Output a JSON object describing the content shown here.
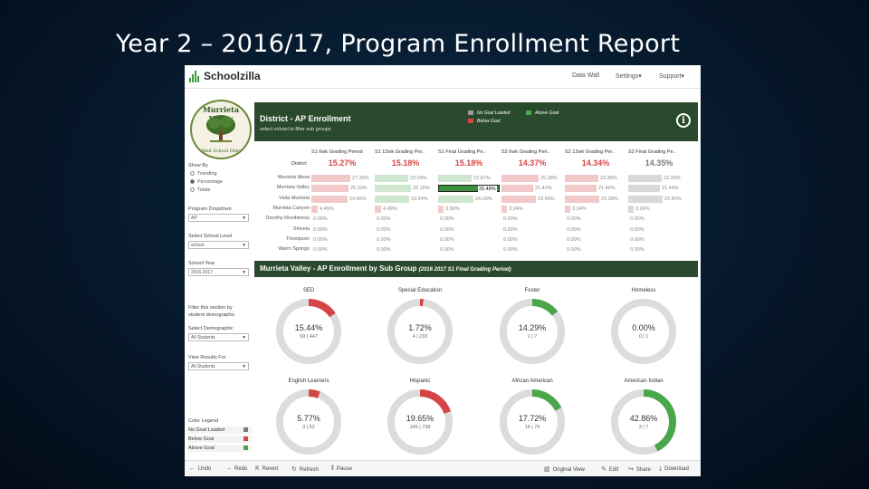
{
  "slide": {
    "title": "Year 2 – 2016/17, Program Enrollment Report"
  },
  "app": {
    "logo": "Schoolzilla",
    "nav": [
      "Data Wall",
      "Settings▾",
      "Support▾"
    ]
  },
  "crest": {
    "title": "Murrieta Valley",
    "subtitle": "Unified School District"
  },
  "filters": {
    "show_by_label": "Show By",
    "show_by_options": [
      "Trending",
      "Percentage",
      "Totals"
    ],
    "show_by_selected": 1,
    "program_label": "Program Dropdown",
    "program_value": "AP",
    "school_level_label": "Select School Level",
    "school_level_value": "school",
    "school_year_label": "School Year",
    "school_year_value": "2016-2017",
    "filter_note_1": "Filter this section by",
    "filter_note_2": "student demographic",
    "demographic_label": "Select Demographic",
    "demographic_value": "All Students",
    "view_results_label": "View Results For",
    "view_results_value": "All Students"
  },
  "color_legend": {
    "title": "Color Legend",
    "items": [
      {
        "label": "No Goal Loaded",
        "color": "#7a7a7a"
      },
      {
        "label": "Below Goal",
        "color": "#d64545"
      },
      {
        "label": "Above Goal",
        "color": "#4aa64a"
      }
    ]
  },
  "header": {
    "title": "District - AP Enrollment",
    "subtitle": "select school to filter sub groups",
    "legend": [
      {
        "label": "No Goal Loaded",
        "color": "#9a9a9a"
      },
      {
        "label": "Above Goal",
        "color": "#4aa64a"
      },
      {
        "label": "Below Goal",
        "color": "#d64545"
      }
    ]
  },
  "table": {
    "columns": [
      "S1 6wk Grading Period",
      "S1 12wk Grading Per..",
      "S1 Final Grading Pe..",
      "S2 6wk Grading Peri..",
      "S2 12wk Grading Per..",
      "S2 Final Grading Pe.."
    ],
    "district_label": "District",
    "district_values": [
      "15.27%",
      "15.18%",
      "15.18%",
      "14.37%",
      "14.34%",
      "14.35%"
    ],
    "district_colors": [
      "#d64545",
      "#d64545",
      "#d64545",
      "#d64545",
      "#d64545",
      "#7a7a7a"
    ],
    "rows": [
      {
        "name": "Murrieta Mesa",
        "values": [
          "27.35%",
          "23.04%",
          "22.87%",
          "25.28%",
          "23.38%",
          "23.30%"
        ],
        "fracs": [
          0.7,
          0.6,
          0.6,
          0.66,
          0.6,
          0.6
        ],
        "colors": [
          "#f2c9c9",
          "#cfe6cf",
          "#cfe6cf",
          "#f2c9c9",
          "#f2c9c9",
          "#d9d9d9"
        ]
      },
      {
        "name": "Murrieta Valley",
        "values": [
          "25.33%",
          "25.16%",
          "25.48%",
          "21.42%",
          "21.45%",
          "21.44%"
        ],
        "fracs": [
          0.66,
          0.65,
          0.66,
          0.56,
          0.56,
          0.56
        ],
        "colors": [
          "#f2c9c9",
          "#cfe6cf",
          "#3a8f3a",
          "#f2c9c9",
          "#f2c9c9",
          "#d9d9d9"
        ]
      },
      {
        "name": "Vista Murrieta",
        "values": [
          "24.56%",
          "23.54%",
          "24.09%",
          "23.46%",
          "23.38%",
          "23.40%"
        ],
        "fracs": [
          0.64,
          0.61,
          0.63,
          0.61,
          0.61,
          0.61
        ],
        "colors": [
          "#f2c9c9",
          "#cfe6cf",
          "#cfe6cf",
          "#f2c9c9",
          "#f2c9c9",
          "#d9d9d9"
        ]
      },
      {
        "name": "Murrieta Canyon",
        "values": [
          "4.49%",
          "4.49%",
          "3.90%",
          "3.24%",
          "3.24%",
          "3.24%"
        ],
        "fracs": [
          0.12,
          0.12,
          0.1,
          0.09,
          0.09,
          0.09
        ],
        "colors": [
          "#f2c9c9",
          "#f2c9c9",
          "#f2c9c9",
          "#f2c9c9",
          "#f2c9c9",
          "#d9d9d9"
        ]
      },
      {
        "name": "Dorothy Mcelhinney",
        "values": [
          "0.00%",
          "0.00%",
          "0.00%",
          "0.00%",
          "0.00%",
          "0.00%"
        ],
        "fracs": [
          0,
          0,
          0,
          0,
          0,
          0
        ],
        "colors": [
          "#f2c9c9",
          "#f2c9c9",
          "#f2c9c9",
          "#f2c9c9",
          "#f2c9c9",
          "#d9d9d9"
        ]
      },
      {
        "name": "Shivela",
        "values": [
          "0.00%",
          "0.00%",
          "0.00%",
          "0.00%",
          "0.00%",
          "0.00%"
        ],
        "fracs": [
          0,
          0,
          0,
          0,
          0,
          0
        ],
        "colors": [
          "#f2c9c9",
          "#f2c9c9",
          "#f2c9c9",
          "#f2c9c9",
          "#f2c9c9",
          "#d9d9d9"
        ]
      },
      {
        "name": "Thompson",
        "values": [
          "0.00%",
          "0.00%",
          "0.00%",
          "0.00%",
          "0.00%",
          "0.00%"
        ],
        "fracs": [
          0,
          0,
          0,
          0,
          0,
          0
        ],
        "colors": [
          "#f2c9c9",
          "#f2c9c9",
          "#f2c9c9",
          "#f2c9c9",
          "#f2c9c9",
          "#d9d9d9"
        ]
      },
      {
        "name": "Warm Springs",
        "values": [
          "0.00%",
          "0.00%",
          "0.00%",
          "0.00%",
          "0.00%",
          "0.00%"
        ],
        "fracs": [
          0,
          0,
          0,
          0,
          0,
          0
        ],
        "colors": [
          "#f2c9c9",
          "#f2c9c9",
          "#f2c9c9",
          "#f2c9c9",
          "#f2c9c9",
          "#d9d9d9"
        ]
      }
    ]
  },
  "subgroup": {
    "title": "Murrieta Valley - AP Enrollment by Sub Group",
    "detail": "(2016 2017 S1 Final Grading Period)"
  },
  "chart_data": {
    "type": "pie",
    "title": "Murrieta Valley - AP Enrollment by Sub Group (2016 2017 S1 Final Grading Period)",
    "donuts": [
      {
        "name": "SED",
        "percent": 15.44,
        "label": "15.44%",
        "counts": "69 | 447",
        "color": "#d64545"
      },
      {
        "name": "Special Education",
        "percent": 1.72,
        "label": "1.72%",
        "counts": "4 | 233",
        "color": "#d64545"
      },
      {
        "name": "Foster",
        "percent": 14.29,
        "label": "14.29%",
        "counts": "1 | 7",
        "color": "#4aa64a"
      },
      {
        "name": "Homeless",
        "percent": 0,
        "label": "0.00%",
        "counts": "0 | 1",
        "color": "#d64545"
      },
      {
        "name": "English Learners",
        "percent": 5.77,
        "label": "5.77%",
        "counts": "3 | 52",
        "color": "#d64545"
      },
      {
        "name": "Hispanic",
        "percent": 19.65,
        "label": "19.65%",
        "counts": "145 | 738",
        "color": "#d64545"
      },
      {
        "name": "African American",
        "percent": 17.72,
        "label": "17.72%",
        "counts": "14 | 79",
        "color": "#4aa64a"
      },
      {
        "name": "American Indian",
        "percent": 42.86,
        "label": "42.86%",
        "counts": "3 | 7",
        "color": "#4aa64a"
      }
    ],
    "track_color": "#dcdcdc"
  },
  "toolbar": {
    "items": [
      {
        "icon": "←",
        "label": "Undo",
        "name": "undo"
      },
      {
        "icon": "→",
        "label": "Redo",
        "name": "redo"
      },
      {
        "icon": "K",
        "label": "Revert",
        "name": "revert"
      },
      {
        "icon": "↻",
        "label": "Refresh",
        "name": "refresh"
      },
      {
        "icon": "‖",
        "label": "Pause",
        "name": "pause"
      }
    ],
    "right_items": [
      {
        "icon": "▥",
        "label": "Original View",
        "name": "original-view"
      },
      {
        "icon": "✎",
        "label": "Edit",
        "name": "edit"
      },
      {
        "icon": "↪",
        "label": "Share",
        "name": "share"
      },
      {
        "icon": "⤓",
        "label": "Download",
        "name": "download"
      }
    ]
  }
}
